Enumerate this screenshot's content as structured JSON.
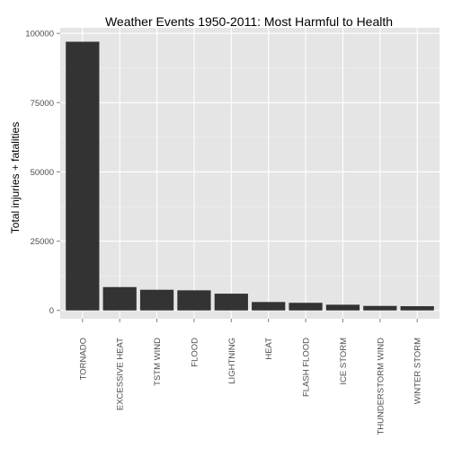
{
  "chart_data": {
    "type": "bar",
    "title": "Weather Events 1950-2011: Most Harmful to Health",
    "xlabel": "",
    "ylabel": "Total injuries + fatalities",
    "categories": [
      "TORNADO",
      "EXCESSIVE HEAT",
      "TSTM WIND",
      "FLOOD",
      "LIGHTNING",
      "HEAT",
      "FLASH FLOOD",
      "ICE STORM",
      "THUNDERSTORM WIND",
      "WINTER STORM"
    ],
    "values": [
      96979,
      8428,
      7461,
      7259,
      6046,
      3037,
      2755,
      2064,
      1621,
      1527
    ],
    "ylim": [
      -3000,
      102000
    ],
    "yticks": [
      0,
      25000,
      50000,
      75000,
      100000
    ],
    "grid": true,
    "legend": "none",
    "colors": {
      "panel_background": "#e5e5e5",
      "grid_major": "#ffffff",
      "grid_minor": "#f2f2f2",
      "bar_fill": "#333333",
      "tick_text": "#4d4d4d"
    }
  }
}
